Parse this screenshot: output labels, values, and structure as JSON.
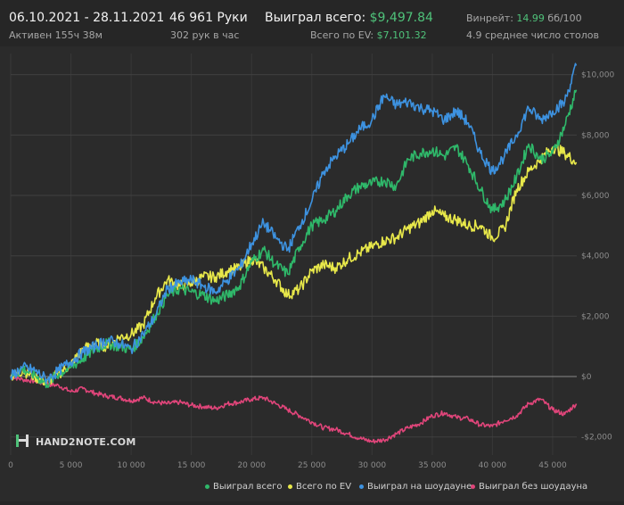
{
  "header": {
    "date_range": "06.10.2021 - 28.11.2021",
    "active_time": "Активен 155ч 38м",
    "hands": "46 961 Руки",
    "hands_per_hour": "302 рук в час",
    "won_total_label": "Выиграл всего:",
    "won_total_value": "$9,497.84",
    "ev_total_label": "Всего по EV:",
    "ev_total_value": "$7,101.32",
    "winrate_label": "Винрейт:",
    "winrate_value": "14.99",
    "winrate_unit": "бб/100",
    "avg_tables": "4.9 среднее число столов"
  },
  "brand": {
    "logo_text": "HAND2NOTE.COM"
  },
  "colors": {
    "won_total": "#2fb86a",
    "ev_total": "#e8e84a",
    "showdown": "#3d92e0",
    "non_showdown": "#e0457a",
    "positive_value": "#4fc27a"
  },
  "chart_data": {
    "type": "line",
    "xlim": [
      0,
      47000
    ],
    "ylim": [
      -2600,
      10700
    ],
    "x_ticks": [
      {
        "v": 0,
        "label": "0"
      },
      {
        "v": 5000,
        "label": "5 000"
      },
      {
        "v": 10000,
        "label": "10 000"
      },
      {
        "v": 15000,
        "label": "15 000"
      },
      {
        "v": 20000,
        "label": "20 000"
      },
      {
        "v": 25000,
        "label": "25 000"
      },
      {
        "v": 30000,
        "label": "30 000"
      },
      {
        "v": 35000,
        "label": "35 000"
      },
      {
        "v": 40000,
        "label": "40 000"
      },
      {
        "v": 45000,
        "label": "45 000"
      }
    ],
    "y_ticks": [
      {
        "v": -2000,
        "label": "-$2,000"
      },
      {
        "v": 0,
        "label": "$0"
      },
      {
        "v": 2000,
        "label": "$2,000"
      },
      {
        "v": 4000,
        "label": "$4,000"
      },
      {
        "v": 6000,
        "label": "$6,000"
      },
      {
        "v": 8000,
        "label": "$8,000"
      },
      {
        "v": 10000,
        "label": "$10,000"
      }
    ],
    "grid": true,
    "legend_position": "bottom-right",
    "x": [
      0,
      1000,
      2000,
      3000,
      4000,
      5000,
      6000,
      7000,
      8000,
      9000,
      10000,
      11000,
      12000,
      13000,
      14000,
      15000,
      16000,
      17000,
      18000,
      19000,
      20000,
      21000,
      22000,
      23000,
      24000,
      25000,
      26000,
      27000,
      28000,
      29000,
      30000,
      31000,
      32000,
      33000,
      34000,
      35000,
      36000,
      37000,
      38000,
      39000,
      40000,
      41000,
      42000,
      43000,
      44000,
      45000,
      46000,
      46961
    ],
    "series": [
      {
        "name": "Выиграл всего",
        "key": "won_total",
        "values": [
          0,
          250,
          50,
          -250,
          100,
          300,
          600,
          900,
          1100,
          1000,
          900,
          1300,
          2000,
          2700,
          2900,
          2800,
          2700,
          2500,
          2700,
          3000,
          3800,
          4200,
          3700,
          3400,
          4300,
          5000,
          5200,
          5500,
          6000,
          6300,
          6400,
          6500,
          6300,
          7200,
          7400,
          7500,
          7300,
          7600,
          7000,
          6200,
          5500,
          5800,
          6600,
          7700,
          7200,
          7400,
          8300,
          9498
        ]
      },
      {
        "name": "Всего по EV",
        "key": "ev_total",
        "values": [
          0,
          200,
          0,
          -200,
          100,
          400,
          900,
          1100,
          1000,
          1300,
          1400,
          1700,
          2600,
          3200,
          3000,
          3100,
          3300,
          3300,
          3500,
          3600,
          3900,
          3600,
          3200,
          2700,
          2900,
          3500,
          3700,
          3600,
          3900,
          4100,
          4300,
          4500,
          4600,
          4900,
          5100,
          5500,
          5300,
          5200,
          5000,
          5000,
          4600,
          4900,
          6200,
          6800,
          7200,
          7600,
          7400,
          7101
        ]
      },
      {
        "name": "Выиграл на шоудауне",
        "key": "showdown",
        "values": [
          0,
          300,
          200,
          -100,
          200,
          500,
          800,
          1000,
          1200,
          1100,
          900,
          1400,
          2000,
          2900,
          3100,
          3200,
          3000,
          2800,
          3200,
          3600,
          4400,
          5100,
          4600,
          4200,
          5000,
          5800,
          6800,
          7300,
          7700,
          8200,
          8500,
          9300,
          9000,
          9100,
          8900,
          8800,
          8500,
          8800,
          8400,
          7400,
          6800,
          7300,
          8000,
          8900,
          8500,
          8800,
          9100,
          10300
        ]
      },
      {
        "name": "Выиграл без шоудауна",
        "key": "non_showdown",
        "values": [
          0,
          -100,
          -150,
          -250,
          -300,
          -500,
          -400,
          -550,
          -650,
          -700,
          -800,
          -700,
          -850,
          -900,
          -850,
          -950,
          -1000,
          -1050,
          -900,
          -850,
          -750,
          -700,
          -900,
          -1100,
          -1300,
          -1500,
          -1700,
          -1750,
          -1900,
          -2050,
          -2150,
          -2100,
          -1900,
          -1700,
          -1550,
          -1300,
          -1200,
          -1350,
          -1400,
          -1600,
          -1650,
          -1450,
          -1300,
          -900,
          -750,
          -1100,
          -1250,
          -900
        ]
      }
    ]
  }
}
